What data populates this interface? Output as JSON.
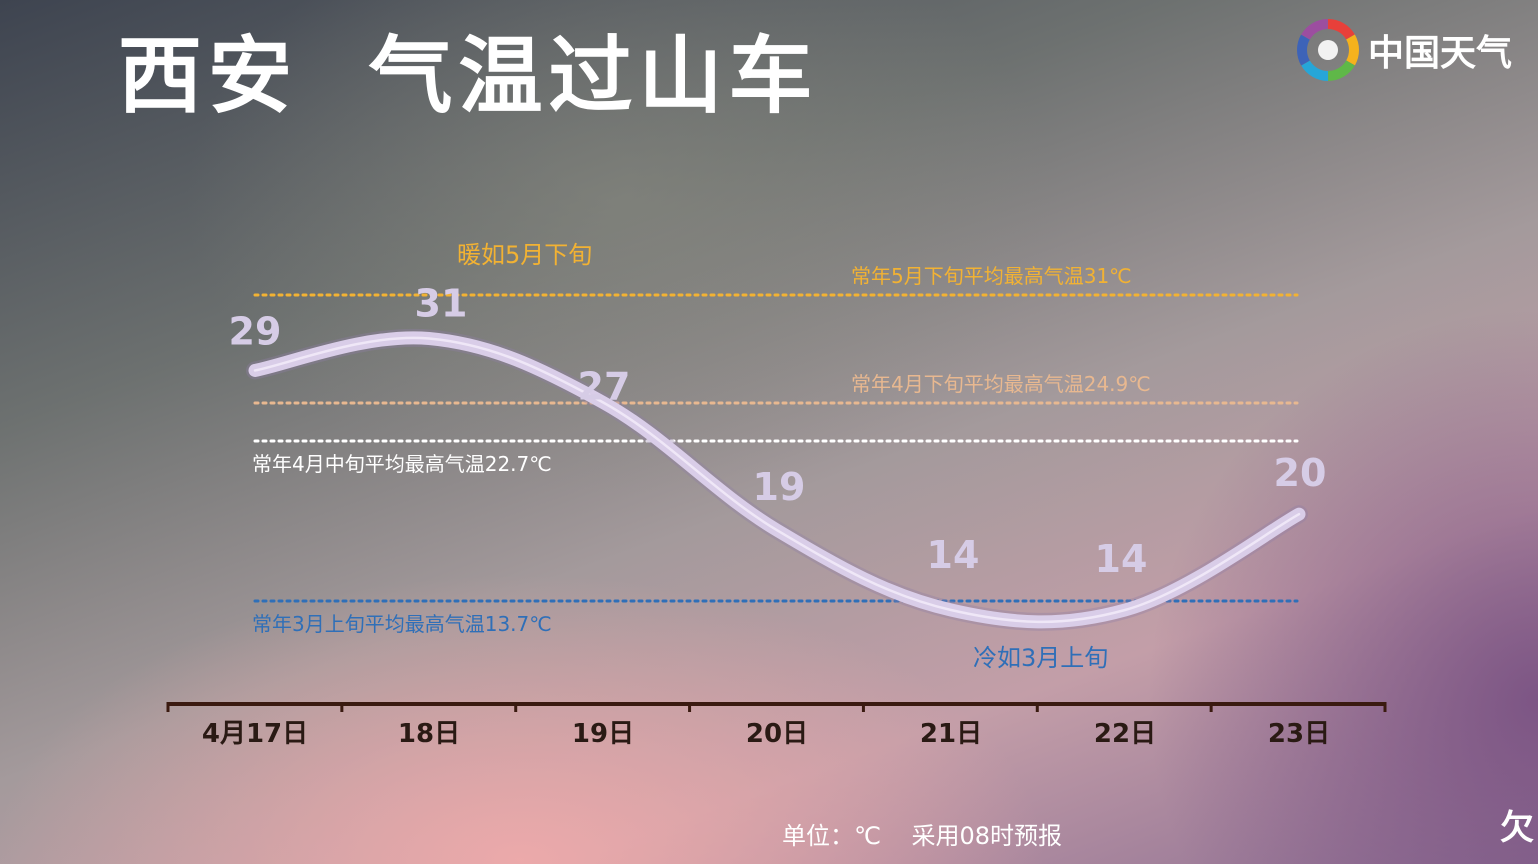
{
  "title": "西安  气温过山车",
  "logo": {
    "text": "中国天气",
    "icon": "china-weather-logo-icon"
  },
  "footer": {
    "unit": "单位：℃",
    "note": "采用08时预报"
  },
  "watermark": "欠",
  "colors": {
    "curve": "#d9cde8",
    "ref_may_late": "#f2b233",
    "ref_apr_late": "#e8b890",
    "ref_apr_mid": "#ffffff",
    "ref_mar_early": "#2f6fb8",
    "axis": "#3a1a10"
  },
  "chart_data": {
    "type": "line",
    "title": "西安  气温过山车",
    "categories": [
      "4月17日",
      "18日",
      "19日",
      "20日",
      "21日",
      "22日",
      "23日"
    ],
    "series": [
      {
        "values": [
          29,
          31,
          27,
          19,
          14,
          14,
          20
        ]
      }
    ],
    "value_labels": [
      "29",
      "31",
      "27",
      "19",
      "14",
      "14",
      "20"
    ],
    "unit": "℃",
    "ylim": [
      12,
      33
    ],
    "grid": false,
    "reference_lines": [
      {
        "label": "常年5月下旬平均最高气温31℃",
        "value": 31,
        "color": "#f2b233"
      },
      {
        "label": "常年4月下旬平均最高气温24.9℃",
        "value": 24.9,
        "color": "#e8b890"
      },
      {
        "label": "常年4月中旬平均最高气温22.7℃",
        "value": 22.7,
        "color": "#ffffff"
      },
      {
        "label": "常年3月上旬平均最高气温13.7℃",
        "value": 13.7,
        "color": "#2f6fb8"
      }
    ],
    "annotations": [
      {
        "text": "暖如5月下旬",
        "color": "#f2b233"
      },
      {
        "text": "冷如3月上旬",
        "color": "#2f6fb8"
      }
    ]
  }
}
